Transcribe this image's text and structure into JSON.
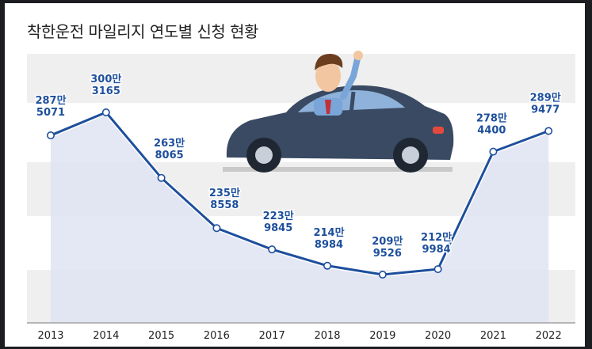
{
  "title": "착한운전 마일리지 연도별 신청 현황",
  "colors": {
    "line": "#1d4f9c",
    "label": "#1d4f9c",
    "area": "#dfe3f2",
    "band": "#efefef",
    "axis": "#777777",
    "car_body": "#3a4a63",
    "shirt": "#7aa5d8",
    "tie": "#c0323a"
  },
  "chart_data": {
    "type": "line",
    "title": "착한운전 마일리지 연도별 신청 현황",
    "xlabel": "",
    "ylabel": "",
    "x": [
      "2013",
      "2014",
      "2015",
      "2016",
      "2017",
      "2018",
      "2019",
      "2020",
      "2021",
      "2022"
    ],
    "values": [
      2875071,
      3003165,
      2638065,
      2358558,
      2239845,
      2148984,
      2099526,
      2129984,
      2784400,
      2899477
    ],
    "labels": [
      [
        "287만",
        "5071"
      ],
      [
        "300만",
        "3165"
      ],
      [
        "263만",
        "8065"
      ],
      [
        "235만",
        "8558"
      ],
      [
        "223만",
        "9845"
      ],
      [
        "214만",
        "8984"
      ],
      [
        "209만",
        "9526"
      ],
      [
        "212만",
        "9984"
      ],
      [
        "278만",
        "4400"
      ],
      [
        "289만",
        "9477"
      ]
    ],
    "grid": false,
    "legend": "none"
  }
}
